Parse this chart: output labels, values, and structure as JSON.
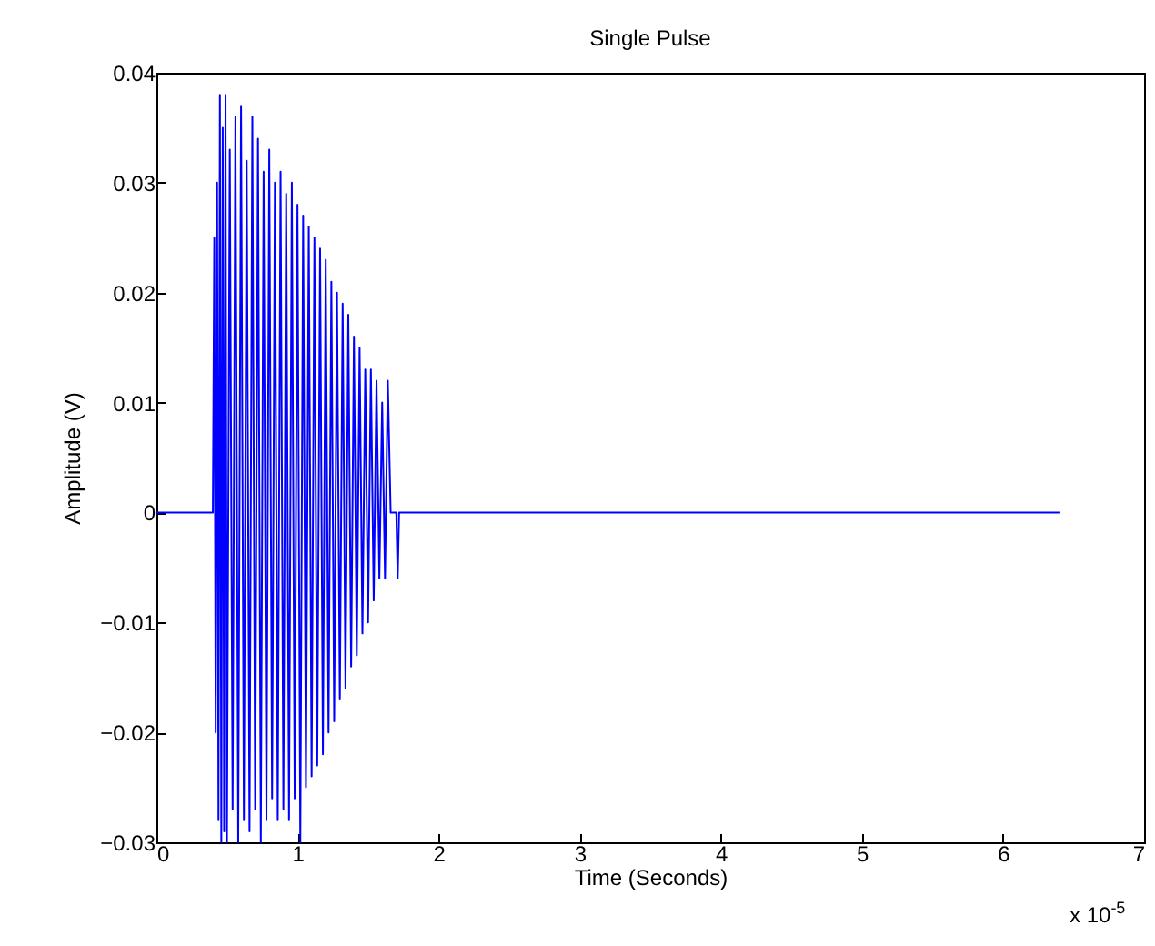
{
  "chart_data": {
    "type": "line",
    "title": "Single Pulse",
    "xlabel": "Time (Seconds)",
    "ylabel": "Amplitude (V)",
    "annotations": [
      "x 10$^{-5}$"
    ],
    "xlim": [
      0,
      7
    ],
    "xticks": [
      0,
      1,
      2,
      3,
      4,
      5,
      6,
      7
    ],
    "ylim": [
      -0.03,
      0.04
    ],
    "yticks": [
      -0.03,
      -0.02,
      -0.01,
      0,
      0.01,
      0.02,
      0.03,
      0.04
    ],
    "grid": false,
    "series": [
      {
        "color": "#0000ff",
        "x": [
          0,
          0.4,
          0.41,
          0.42,
          0.43,
          0.44,
          0.45,
          0.46,
          0.47,
          0.48,
          0.49,
          0.5,
          0.52,
          0.54,
          0.56,
          0.58,
          0.6,
          0.62,
          0.64,
          0.66,
          0.68,
          0.7,
          0.72,
          0.74,
          0.76,
          0.78,
          0.8,
          0.82,
          0.84,
          0.86,
          0.88,
          0.9,
          0.92,
          0.94,
          0.96,
          0.98,
          1.0,
          1.02,
          1.04,
          1.06,
          1.08,
          1.1,
          1.12,
          1.14,
          1.16,
          1.18,
          1.2,
          1.22,
          1.24,
          1.26,
          1.28,
          1.3,
          1.32,
          1.34,
          1.36,
          1.38,
          1.4,
          1.42,
          1.44,
          1.46,
          1.48,
          1.5,
          1.52,
          1.54,
          1.56,
          1.58,
          1.6,
          1.62,
          1.64,
          1.66,
          1.7,
          1.71,
          1.72,
          6.4
        ],
        "values": [
          0,
          0,
          0.025,
          -0.02,
          0.03,
          -0.028,
          0.038,
          -0.03,
          0.035,
          -0.029,
          0.038,
          -0.03,
          0.033,
          -0.027,
          0.036,
          -0.03,
          0.037,
          -0.028,
          0.032,
          -0.029,
          0.036,
          -0.027,
          0.034,
          -0.03,
          0.031,
          -0.028,
          0.033,
          -0.026,
          0.03,
          -0.028,
          0.031,
          -0.027,
          0.029,
          -0.028,
          0.03,
          -0.026,
          0.028,
          -0.03,
          0.027,
          -0.025,
          0.026,
          -0.024,
          0.025,
          -0.023,
          0.024,
          -0.022,
          0.023,
          -0.02,
          0.021,
          -0.019,
          0.02,
          -0.017,
          0.019,
          -0.016,
          0.018,
          -0.014,
          0.016,
          -0.013,
          0.015,
          -0.011,
          0.013,
          -0.01,
          0.013,
          -0.008,
          0.012,
          -0.006,
          0.01,
          -0.006,
          0.012,
          0,
          0,
          -0.006,
          0,
          0
        ]
      }
    ]
  }
}
